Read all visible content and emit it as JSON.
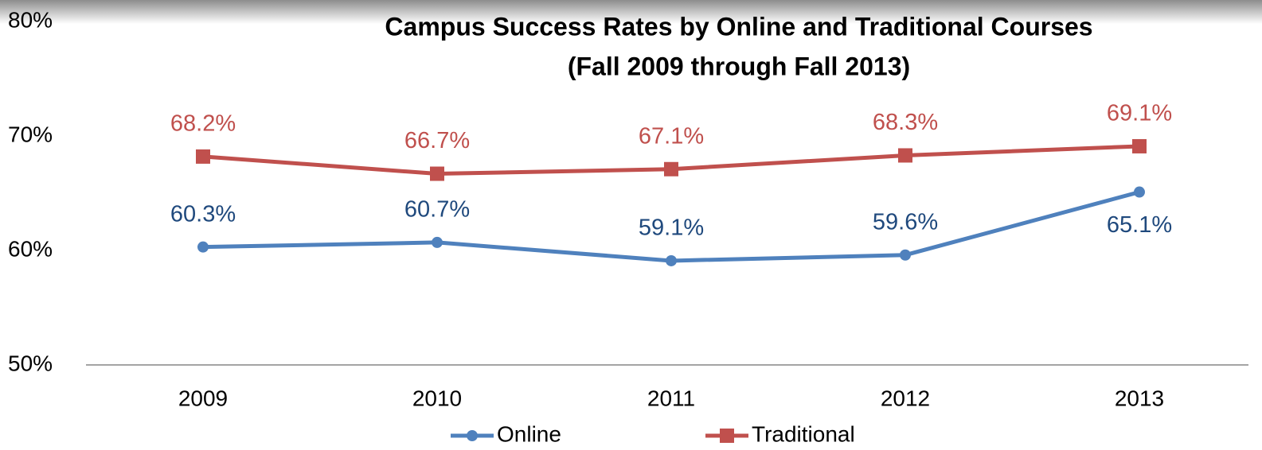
{
  "chart_data": {
    "type": "line",
    "title": "Campus Success Rates by Online and Traditional Courses",
    "subtitle": "(Fall 2009 through Fall 2013)",
    "categories": [
      "2009",
      "2010",
      "2011",
      "2012",
      "2013"
    ],
    "series": [
      {
        "name": "Online",
        "color": "#4f81bd",
        "label_color": "#1f497d",
        "marker": "circle",
        "values": [
          60.3,
          60.7,
          59.1,
          59.6,
          65.1
        ],
        "value_labels": [
          "60.3%",
          "60.7%",
          "59.1%",
          "59.6%",
          "65.1%"
        ]
      },
      {
        "name": "Traditional",
        "color": "#c0504d",
        "label_color": "#c0504d",
        "marker": "square",
        "values": [
          68.2,
          66.7,
          67.1,
          68.3,
          69.1
        ],
        "value_labels": [
          "68.2%",
          "66.7%",
          "67.1%",
          "68.3%",
          "69.1%"
        ]
      }
    ],
    "ylim": [
      50,
      80
    ],
    "yticks": [
      {
        "value": 50,
        "label": "50%"
      },
      {
        "value": 60,
        "label": "60%"
      },
      {
        "value": 70,
        "label": "70%"
      },
      {
        "value": 80,
        "label": "80%"
      }
    ],
    "grid": false,
    "legend": "bottom"
  }
}
